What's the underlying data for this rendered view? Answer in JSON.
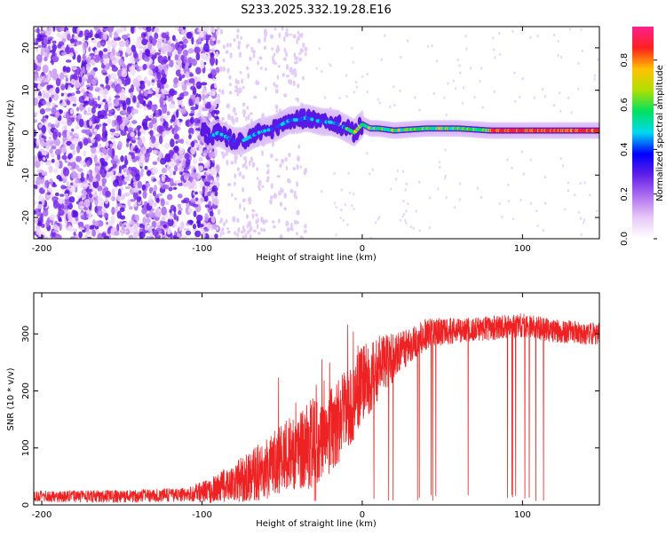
{
  "title": "S233.2025.332.19.28.E16",
  "colors": {
    "signal": "#ee2222",
    "frame": "#000000",
    "scatter": "#7a2ce8"
  },
  "chart_data": [
    {
      "type": "heatmap",
      "name": "spectrogram",
      "xlabel": "Height of straight line (km)",
      "ylabel": "Frequency (Hz)",
      "xlim": [
        -205,
        148
      ],
      "ylim": [
        -25,
        25
      ],
      "xticks": [
        -200,
        -100,
        0,
        100
      ],
      "yticks": [
        -20,
        -10,
        0,
        10,
        20
      ],
      "ridge": {
        "description": "dominant frequency track",
        "x": [
          -100,
          -95,
          -90,
          -85,
          -80,
          -75,
          -70,
          -65,
          -60,
          -55,
          -50,
          -45,
          -40,
          -35,
          -30,
          -25,
          -20,
          -15,
          -10,
          -5,
          0,
          5,
          10,
          20,
          40,
          60,
          80,
          100,
          120,
          148
        ],
        "y": [
          1,
          -1,
          0,
          -1,
          -2,
          -2,
          -1,
          0,
          0.5,
          1,
          2,
          3,
          3,
          3.5,
          3,
          2.5,
          2.5,
          2,
          1,
          0,
          2,
          1,
          1,
          0.5,
          1,
          1,
          0.5,
          0.5,
          0.5,
          0.5
        ]
      },
      "colorbar": {
        "label": "Normalized spectral amplitude",
        "range": [
          0,
          0.95
        ],
        "ticks": [
          0,
          0.2,
          0.4,
          0.6,
          0.8
        ],
        "tick_labels": [
          "0.0",
          "0.2",
          "0.4",
          "0.6",
          "0.8"
        ],
        "colors": [
          "#ffffff",
          "#e8c8f8",
          "#b070f0",
          "#6020e8",
          "#0000ff",
          "#00d8f0",
          "#00e060",
          "#b0e000",
          "#ffc000",
          "#ff2020",
          "#ff2090"
        ]
      }
    },
    {
      "type": "line",
      "name": "snr",
      "xlabel": "Height of straight line (km)",
      "ylabel": "SNR (10 * v/v)",
      "xlim": [
        -205,
        148
      ],
      "ylim": [
        0,
        372
      ],
      "xticks": [
        -200,
        -100,
        0,
        100
      ],
      "yticks": [
        0,
        100,
        200,
        300
      ],
      "trend": {
        "x": [
          -205,
          -150,
          -110,
          -95,
          -80,
          -70,
          -60,
          -50,
          -40,
          -30,
          -20,
          -10,
          0,
          10,
          20,
          30,
          40,
          50,
          60,
          80,
          100,
          120,
          148
        ],
        "y": [
          15,
          15,
          18,
          25,
          40,
          50,
          65,
          80,
          95,
          110,
          130,
          165,
          210,
          240,
          260,
          280,
          300,
          305,
          305,
          310,
          315,
          305,
          300
        ]
      },
      "noise_amplitude": {
        "x": [
          -205,
          -110,
          -90,
          -60,
          -30,
          0,
          30,
          60,
          148
        ],
        "y": [
          10,
          12,
          25,
          55,
          80,
          70,
          30,
          22,
          20
        ]
      },
      "dropout_start_km": -30,
      "dropout_end_km": 120
    }
  ]
}
